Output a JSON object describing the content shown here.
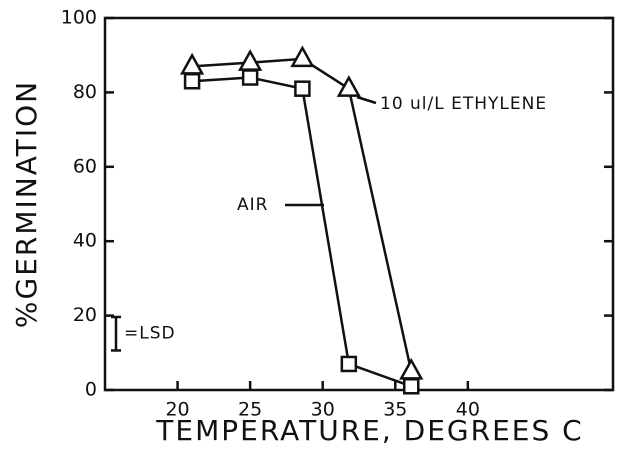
{
  "chart_data": {
    "type": "line",
    "x_label": "TEMPERATURE, DEGREES C",
    "y_label": "%GERMINATION",
    "xlim": [
      15,
      50
    ],
    "xticks": [
      20,
      25,
      30,
      35,
      40
    ],
    "ylim": [
      0,
      100
    ],
    "yticks": [
      0,
      20,
      40,
      60,
      80,
      100
    ],
    "series": [
      {
        "name": "AIR",
        "marker": "square",
        "color": "#111111",
        "x": [
          21,
          25,
          28.6,
          31.8,
          36.1
        ],
        "values": [
          83,
          84,
          81,
          7,
          1
        ]
      },
      {
        "name": "10 ul/L ETHYLENE",
        "marker": "triangle",
        "color": "#111111",
        "x": [
          21,
          25,
          28.6,
          31.8,
          36.1
        ],
        "values": [
          87,
          88,
          89,
          81,
          5
        ]
      }
    ],
    "lsd": {
      "label": "=LSD",
      "value": 9
    }
  }
}
